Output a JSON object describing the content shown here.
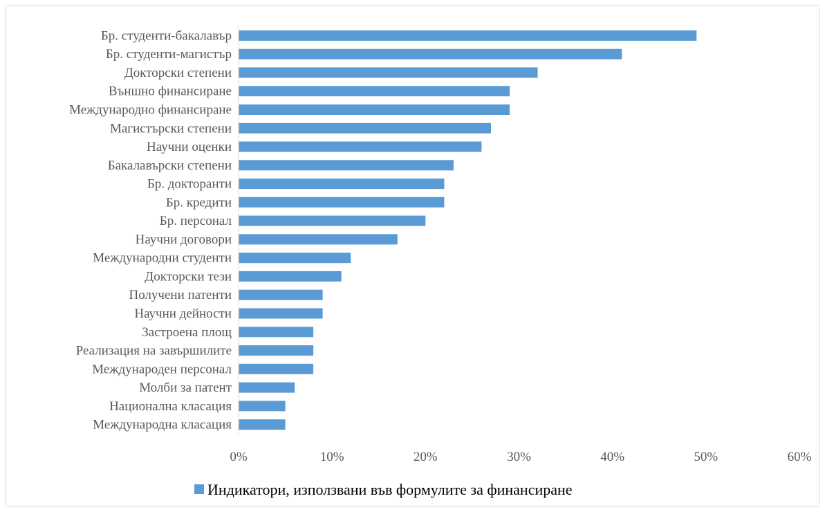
{
  "chart_data": {
    "type": "bar",
    "orientation": "horizontal",
    "title": "",
    "xlabel": "",
    "ylabel": "",
    "categories": [
      "Бр. студенти-бакалавър",
      "Бр. студенти-магистър",
      "Докторски степени",
      "Външно финансиране",
      "Международно финансиране",
      "Магистърски степени",
      "Научни оценки",
      "Бакалавърски степени",
      "Бр. докторанти",
      "Бр. кредити",
      "Бр. персонал",
      "Научни договори",
      "Международни студенти",
      "Докторски тези",
      "Получени патенти",
      "Научни дейности",
      "Застроена площ",
      "Реализация на завършилите",
      "Международен персонал",
      "Молби за патент",
      "Национална класация",
      "Международна класация"
    ],
    "series": [
      {
        "name": "Индикатори, използвани във формулите за финансиране",
        "values": [
          49,
          41,
          32,
          29,
          29,
          27,
          26,
          23,
          22,
          22,
          20,
          17,
          12,
          11,
          9,
          9,
          8,
          8,
          8,
          6,
          5,
          5
        ],
        "color": "#5b9bd5"
      }
    ],
    "xlim": [
      0,
      60
    ],
    "x_ticks": [
      "0%",
      "10%",
      "20%",
      "30%",
      "40%",
      "50%",
      "60%"
    ],
    "grid": false,
    "legend_position": "bottom"
  }
}
